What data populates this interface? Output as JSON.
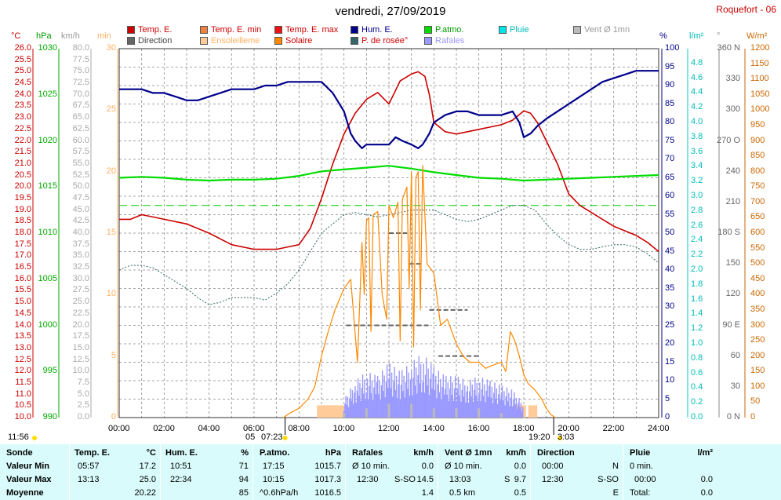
{
  "header": {
    "title": "vendredi, 27/09/2019",
    "station": "Roquefort - 06"
  },
  "legend": [
    {
      "label": "Temp. E.",
      "color": "#cc0000",
      "text_color": "#cc0000"
    },
    {
      "label": "Temp. E. min",
      "color": "#f08040",
      "text_color": "#cc0000"
    },
    {
      "label": "Temp. E. max",
      "color": "#ee1111",
      "text_color": "#cc0000"
    },
    {
      "label": "Hum. E.",
      "color": "#00008b",
      "text_color": "#00008b"
    },
    {
      "label": "P.atmo.",
      "color": "#00dd00",
      "text_color": "#009900"
    },
    {
      "label": "Pluie",
      "color": "#00e5e5",
      "text_color": "#00bbbb"
    },
    {
      "label": "Vent Ø 1mn",
      "color": "#bbbbbb",
      "text_color": "#999999"
    },
    {
      "label": "Direction",
      "color": "#666666",
      "text_color": "#444444"
    },
    {
      "label": "Ensoleilleme",
      "color": "#ffcc99",
      "text_color": "#ffb060"
    },
    {
      "label": "Solaire",
      "color": "#ff8800",
      "text_color": "#cc0000"
    },
    {
      "label": "P. de rosée°",
      "color": "#336666",
      "text_color": "#cc0000"
    },
    {
      "label": "Rafales",
      "color": "#9999ff",
      "text_color": "#9999ff"
    }
  ],
  "axis_units": {
    "temp": "°C",
    "press": "hPa",
    "wind": "km/h",
    "min": "min",
    "hum": "%",
    "rain": "l/m²",
    "dir": "°",
    "solar": "W/m²"
  },
  "chart_data": {
    "type": "line",
    "x_axis": {
      "label_values": [
        "00:00",
        "02:00",
        "04:00",
        "06:00",
        "08:00",
        "10:00",
        "12:00",
        "14:00",
        "16:00",
        "18:00",
        "20:00",
        "22:00",
        "24:00"
      ],
      "range_hours": [
        0,
        24
      ]
    },
    "axes": {
      "temp": {
        "min": 10.0,
        "max": 26.0,
        "ticks": [
          "10.0",
          "10.5",
          "11.0",
          "11.5",
          "12.0",
          "12.5",
          "13.0",
          "13.5",
          "14.0",
          "14.5",
          "15.0",
          "15.5",
          "16.0",
          "16.5",
          "17.0",
          "17.5",
          "18.0",
          "18.5",
          "19.0",
          "19.5",
          "20.0",
          "20.5",
          "21.0",
          "21.5",
          "22.0",
          "22.5",
          "23.0",
          "23.5",
          "24.0",
          "24.5",
          "25.0",
          "25.5",
          "26.0"
        ]
      },
      "press": {
        "min": 990,
        "max": 1030,
        "ticks": [
          "990",
          "995",
          "1000",
          "1005",
          "1010",
          "1015",
          "1020",
          "1025",
          "1030"
        ]
      },
      "wind": {
        "min": 0,
        "max": 80,
        "ticks": [
          "0.0",
          "2.5",
          "5.0",
          "7.5",
          "10.0",
          "12.5",
          "15.0",
          "17.5",
          "20.0",
          "22.5",
          "25.0",
          "27.5",
          "30.0",
          "32.5",
          "35.0",
          "37.5",
          "40.0",
          "42.5",
          "45.0",
          "47.5",
          "50.0",
          "52.5",
          "55.0",
          "57.5",
          "60.0",
          "62.5",
          "65.0",
          "67.5",
          "70.0",
          "72.5",
          "75.0",
          "77.5",
          "80.0"
        ]
      },
      "minutes": {
        "min": 0,
        "max": 30,
        "ticks": [
          "0",
          "5",
          "10",
          "15",
          "20",
          "25",
          "30"
        ]
      },
      "hum": {
        "min": 0,
        "max": 100,
        "ticks": [
          "0",
          "5",
          "10",
          "15",
          "20",
          "25",
          "30",
          "35",
          "40",
          "45",
          "50",
          "55",
          "60",
          "65",
          "70",
          "75",
          "80",
          "85",
          "90",
          "95",
          "100"
        ]
      },
      "rain": {
        "min": 0,
        "max": 5.0,
        "ticks": [
          "0.0",
          "0.2",
          "0.4",
          "0.6",
          "0.8",
          "1.0",
          "1.2",
          "1.4",
          "1.6",
          "1.8",
          "2.0",
          "2.2",
          "2.4",
          "2.6",
          "2.8",
          "3.0",
          "3.2",
          "3.4",
          "3.6",
          "3.8",
          "4.0",
          "4.2",
          "4.4",
          "4.6",
          "4.8"
        ]
      },
      "dir": {
        "min": 0,
        "max": 360,
        "ticks": [
          "0 N",
          "30",
          "60",
          "90 E",
          "120",
          "150",
          "180 S",
          "210",
          "240",
          "270 O",
          "300",
          "330",
          "360 N"
        ]
      },
      "solar": {
        "min": 0,
        "max": 1200,
        "ticks": [
          "0",
          "50",
          "100",
          "150",
          "200",
          "250",
          "300",
          "350",
          "400",
          "450",
          "500",
          "550",
          "600",
          "650",
          "700",
          "750",
          "800",
          "850",
          "900",
          "950",
          "1000",
          "1050",
          "1100",
          "1150",
          "1200"
        ]
      }
    },
    "series": [
      {
        "name": "Temp. E.",
        "axis": "temp",
        "color": "#cc0000",
        "x": [
          0,
          0.5,
          1,
          1.5,
          2,
          3,
          4,
          5,
          6,
          7,
          7.5,
          8,
          8.5,
          9,
          9.5,
          10,
          10.5,
          11,
          11.5,
          12,
          12.5,
          13,
          13.3,
          13.6,
          13.8,
          14,
          14.5,
          15,
          15.5,
          16,
          16.5,
          17,
          17.5,
          18,
          18.3,
          18.6,
          19,
          19.5,
          20,
          20.5,
          21,
          21.5,
          22,
          22.5,
          23,
          23.5,
          24
        ],
        "y": [
          18.6,
          18.6,
          18.8,
          18.7,
          18.6,
          18.4,
          18.0,
          17.5,
          17.3,
          17.3,
          17.4,
          17.5,
          18.2,
          19.5,
          21.0,
          22.3,
          23.2,
          23.8,
          24.1,
          23.6,
          24.6,
          24.9,
          25.0,
          24.8,
          24.0,
          22.8,
          22.4,
          22.3,
          22.4,
          22.5,
          22.6,
          22.7,
          22.9,
          23.3,
          23.2,
          22.8,
          22.0,
          21.0,
          19.7,
          19.2,
          18.9,
          18.6,
          18.3,
          18.1,
          17.9,
          17.6,
          17.2
        ]
      },
      {
        "name": "P.atmo.",
        "axis": "press",
        "color": "#00dd00",
        "x": [
          0,
          1,
          2,
          3,
          4,
          5,
          6,
          7,
          8,
          9,
          10,
          11,
          12,
          13,
          14,
          15,
          16,
          17,
          18,
          19,
          20,
          21,
          22,
          23,
          24
        ],
        "y": [
          1016.0,
          1016.1,
          1016.0,
          1015.8,
          1015.7,
          1015.8,
          1015.8,
          1015.9,
          1016.2,
          1016.7,
          1016.9,
          1017.1,
          1017.3,
          1017.0,
          1016.6,
          1016.3,
          1016.0,
          1015.9,
          1015.7,
          1015.8,
          1015.9,
          1016.0,
          1016.1,
          1016.2,
          1016.3
        ]
      },
      {
        "name": "Hum. E.",
        "axis": "hum",
        "color": "#00008b",
        "x": [
          0,
          0.5,
          1,
          1.5,
          2,
          2.5,
          3,
          3.5,
          4,
          4.5,
          5,
          5.5,
          6,
          6.5,
          7,
          7.5,
          8,
          8.5,
          9,
          9.5,
          10,
          10.3,
          10.5,
          10.8,
          11,
          11.5,
          12,
          12.3,
          12.6,
          13,
          13.3,
          13.5,
          13.8,
          14,
          14.5,
          15,
          15.5,
          16,
          16.5,
          17,
          17.5,
          17.8,
          18,
          18.3,
          18.6,
          19,
          19.5,
          20,
          20.5,
          21,
          21.5,
          22,
          22.5,
          23,
          23.5,
          24
        ],
        "y": [
          89,
          89,
          89,
          88,
          88,
          87,
          86,
          86,
          87,
          88,
          89,
          89,
          89,
          90,
          90,
          91,
          91,
          91,
          91,
          88,
          83,
          77,
          75,
          73,
          74,
          74,
          74,
          76,
          75,
          74,
          73,
          74,
          77,
          80,
          82,
          83,
          83,
          82,
          82,
          82,
          83,
          80,
          76,
          77,
          79,
          81,
          83,
          85,
          87,
          89,
          91,
          92,
          93,
          94,
          94,
          94
        ]
      },
      {
        "name": "P. de rosée°",
        "axis": "temp",
        "color": "#336666",
        "x": [
          0,
          0.5,
          1,
          1.5,
          2,
          2.5,
          3,
          3.5,
          4,
          4.5,
          5,
          5.5,
          6,
          6.5,
          7,
          7.5,
          8,
          8.5,
          9,
          9.5,
          10,
          10.5,
          11,
          11.5,
          12,
          12.5,
          13,
          13.5,
          14,
          14.5,
          15,
          15.5,
          16,
          16.5,
          17,
          17.5,
          18,
          18.5,
          19,
          19.5,
          20,
          20.5,
          21,
          21.5,
          22,
          22.5,
          23,
          23.5,
          24
        ],
        "y": [
          16.4,
          16.6,
          16.6,
          16.5,
          16.2,
          15.9,
          15.6,
          15.2,
          14.9,
          15.0,
          15.2,
          15.2,
          15.2,
          15.1,
          15.4,
          15.8,
          16.4,
          17.2,
          18.0,
          18.4,
          18.8,
          18.9,
          18.8,
          18.7,
          18.8,
          18.9,
          19.0,
          19.0,
          19.0,
          18.8,
          18.6,
          18.5,
          18.6,
          18.8,
          19.0,
          19.2,
          19.2,
          19.0,
          18.4,
          17.9,
          17.5,
          17.3,
          17.3,
          17.4,
          17.5,
          17.5,
          17.4,
          17.1,
          16.7
        ]
      },
      {
        "name": "Solaire",
        "axis": "solar",
        "color": "#ff8800",
        "x": [
          7.3,
          7.6,
          8,
          8.4,
          8.7,
          9,
          9.3,
          9.6,
          10,
          10.3,
          10.6,
          10.8,
          10.9,
          11,
          11.1,
          11.2,
          11.3,
          11.5,
          11.7,
          11.9,
          12,
          12.2,
          12.4,
          12.5,
          12.6,
          12.8,
          12.9,
          13,
          13.1,
          13.2,
          13.3,
          13.4,
          13.5,
          13.7,
          14,
          14.3,
          14.6,
          15,
          15.3,
          15.6,
          16,
          16.3,
          16.6,
          17,
          17.2,
          17.4,
          17.6,
          17.8,
          18,
          18.2,
          18.5,
          18.8,
          19,
          19.2,
          19.4
        ],
        "y": [
          0,
          15,
          30,
          60,
          100,
          200,
          280,
          350,
          420,
          450,
          180,
          570,
          400,
          640,
          650,
          280,
          660,
          670,
          400,
          320,
          690,
          650,
          700,
          250,
          710,
          750,
          420,
          800,
          230,
          780,
          800,
          350,
          820,
          500,
          470,
          300,
          320,
          240,
          200,
          180,
          180,
          160,
          170,
          180,
          150,
          280,
          250,
          200,
          140,
          110,
          90,
          60,
          30,
          10,
          0
        ]
      }
    ],
    "series_gust": {
      "name": "Rafales",
      "axis": "wind",
      "color": "#9999ff",
      "x": [
        10,
        10.5,
        11,
        11.5,
        12,
        12.5,
        13,
        13.5,
        14,
        14.5,
        15,
        15.5,
        16,
        16.5,
        17,
        17.5,
        18
      ],
      "y": [
        4,
        8,
        10,
        9,
        12,
        10,
        12,
        14,
        11,
        9,
        9,
        8,
        9,
        8,
        7,
        6,
        3
      ]
    },
    "series_wind": {
      "name": "Vent Ø 1mn",
      "axis": "wind",
      "color": "#bbbbbb",
      "x": [
        10,
        11,
        12,
        13,
        14,
        15,
        16,
        17,
        18
      ],
      "y": [
        1,
        2,
        3,
        3,
        2,
        2,
        2,
        1,
        0
      ]
    },
    "series_sunshine": {
      "name": "Ensoleilleme",
      "axis": "minutes",
      "color": "#ffcc99",
      "intervals": [
        [
          8.8,
          10.0
        ],
        [
          10.0,
          17.5
        ],
        [
          17.5,
          18.1
        ],
        [
          18.2,
          18.6
        ]
      ],
      "values": [
        1,
        0.5,
        1,
        1
      ]
    },
    "series_direction": {
      "name": "Direction",
      "axis": "dir",
      "color": "#666666",
      "segments": [
        [
          12.0,
          12.8,
          180
        ],
        [
          12.9,
          13.5,
          150
        ],
        [
          10.1,
          13.8,
          90
        ],
        [
          13.8,
          15.5,
          105
        ],
        [
          14.2,
          16.0,
          60
        ]
      ]
    },
    "reference_line": {
      "axis": "temp",
      "value": 19.2,
      "color": "#00cc00"
    },
    "markers": {
      "sunrise": "07:23",
      "sunset": "19:20",
      "moonrise": "11:56",
      "moonset": "05",
      "moon_extra": "3:03",
      "sunrise_label": "06:00"
    }
  },
  "footer": {
    "sonde": {
      "title": "Sonde",
      "rows": [
        "Valeur Min",
        "Valeur Max",
        "Moyenne"
      ]
    },
    "temp": {
      "title": "Temp. E.",
      "unit": "°C",
      "rows": [
        [
          "05:57",
          "17.2"
        ],
        [
          "13:13",
          "25.0"
        ],
        [
          "",
          "20.22"
        ]
      ]
    },
    "hum": {
      "title": "Hum. E.",
      "unit": "%",
      "rows": [
        [
          "10:51",
          "71"
        ],
        [
          "22:34",
          "94"
        ],
        [
          "",
          "85"
        ]
      ]
    },
    "press": {
      "title": "P.atmo.",
      "unit": "hPa",
      "rows": [
        [
          "17:15",
          "1015.7"
        ],
        [
          "10:15",
          "1017.3"
        ],
        [
          "^0.6hPa/h",
          "1016.5"
        ]
      ]
    },
    "gust": {
      "title": "Rafales",
      "unit": "km/h",
      "rows": [
        [
          "Ø 10 min.",
          "",
          "0.0"
        ],
        [
          "12:30",
          "S-SO",
          "14.5"
        ],
        [
          "",
          "",
          "1.4"
        ]
      ]
    },
    "wind": {
      "title": "Vent Ø 1mn",
      "unit": "km/h",
      "rows": [
        [
          "Ø 10 min.",
          "",
          "0.0"
        ],
        [
          "13:03",
          "S",
          "9.7"
        ],
        [
          "0.5 km",
          "",
          "0.5"
        ]
      ]
    },
    "dir": {
      "title": "Direction",
      "rows": [
        [
          "00:00",
          "N"
        ],
        [
          "12:30",
          "S-SO"
        ],
        [
          "",
          "E"
        ]
      ]
    },
    "rain": {
      "title": "Pluie",
      "unit": "l/m²",
      "rows": [
        [
          "0 min.",
          ""
        ],
        [
          "00:00",
          "0.0"
        ],
        [
          "Total:",
          "0.0"
        ]
      ]
    }
  }
}
